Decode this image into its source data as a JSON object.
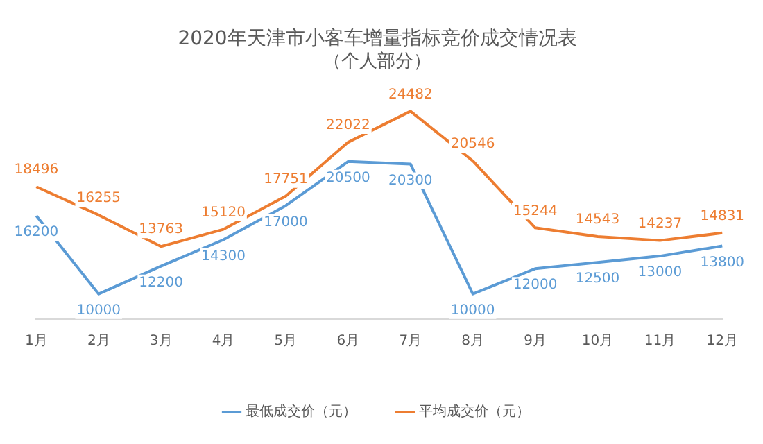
{
  "chart_data": {
    "type": "line",
    "title": "2020年天津市小客车增量指标竞价成交情况表",
    "subtitle": "（个人部分）",
    "categories": [
      "1月",
      "2月",
      "3月",
      "4月",
      "5月",
      "6月",
      "7月",
      "8月",
      "9月",
      "10月",
      "11月",
      "12月"
    ],
    "series": [
      {
        "name": "最低成交价（元）",
        "color": "#5b9bd5",
        "values": [
          16200,
          10000,
          12200,
          14300,
          17000,
          20500,
          20300,
          10000,
          12000,
          12500,
          13000,
          13800
        ]
      },
      {
        "name": "平均成交价（元）",
        "color": "#ed7d31",
        "values": [
          18496,
          16255,
          13763,
          15120,
          17751,
          22022,
          24482,
          20546,
          15244,
          14543,
          14237,
          14831
        ]
      }
    ],
    "data_labels": true,
    "legend": "bottom",
    "grid": false,
    "marker": "none",
    "line_style": "solid"
  }
}
